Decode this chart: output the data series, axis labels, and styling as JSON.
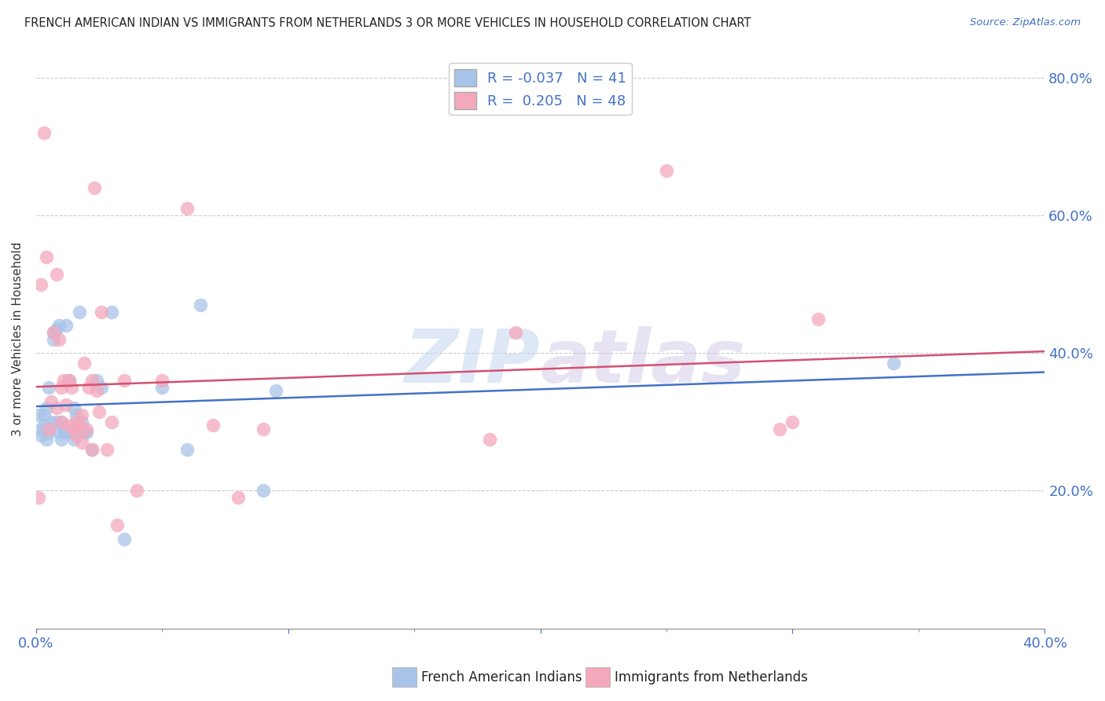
{
  "title": "FRENCH AMERICAN INDIAN VS IMMIGRANTS FROM NETHERLANDS 3 OR MORE VEHICLES IN HOUSEHOLD CORRELATION CHART",
  "source": "Source: ZipAtlas.com",
  "ylabel": "3 or more Vehicles in Household",
  "legend_label1": "French American Indians",
  "legend_label2": "Immigrants from Netherlands",
  "R1": -0.037,
  "N1": 41,
  "R2": 0.205,
  "N2": 48,
  "color1": "#a8c4e8",
  "color2": "#f4a8bc",
  "line_color1": "#4472c4",
  "line_color2": "#d45070",
  "background_color": "#ffffff",
  "grid_color": "#cccccc",
  "text_color": "#4472c4",
  "title_color": "#222222",
  "xlim": [
    0.0,
    0.4
  ],
  "ylim": [
    0.0,
    0.84
  ],
  "x_ticks": [
    0.0,
    0.1,
    0.2,
    0.3,
    0.4
  ],
  "y_ticks": [
    0.2,
    0.4,
    0.6,
    0.8
  ],
  "scatter1_x": [
    0.001,
    0.002,
    0.002,
    0.003,
    0.003,
    0.004,
    0.004,
    0.005,
    0.005,
    0.006,
    0.007,
    0.007,
    0.008,
    0.008,
    0.009,
    0.009,
    0.01,
    0.01,
    0.011,
    0.012,
    0.012,
    0.013,
    0.014,
    0.015,
    0.015,
    0.016,
    0.017,
    0.018,
    0.019,
    0.02,
    0.022,
    0.024,
    0.026,
    0.03,
    0.035,
    0.05,
    0.06,
    0.065,
    0.09,
    0.095,
    0.34
  ],
  "scatter1_y": [
    0.31,
    0.29,
    0.28,
    0.31,
    0.295,
    0.32,
    0.275,
    0.35,
    0.285,
    0.3,
    0.43,
    0.42,
    0.435,
    0.3,
    0.44,
    0.285,
    0.3,
    0.275,
    0.29,
    0.44,
    0.285,
    0.36,
    0.285,
    0.32,
    0.275,
    0.31,
    0.46,
    0.3,
    0.285,
    0.285,
    0.26,
    0.36,
    0.35,
    0.46,
    0.13,
    0.35,
    0.26,
    0.47,
    0.2,
    0.345,
    0.385
  ],
  "scatter2_x": [
    0.001,
    0.002,
    0.003,
    0.004,
    0.005,
    0.006,
    0.007,
    0.008,
    0.008,
    0.009,
    0.01,
    0.01,
    0.011,
    0.012,
    0.013,
    0.013,
    0.014,
    0.015,
    0.016,
    0.016,
    0.017,
    0.018,
    0.018,
    0.019,
    0.02,
    0.021,
    0.022,
    0.022,
    0.023,
    0.024,
    0.025,
    0.026,
    0.028,
    0.03,
    0.032,
    0.035,
    0.04,
    0.05,
    0.06,
    0.07,
    0.08,
    0.09,
    0.18,
    0.19,
    0.25,
    0.295,
    0.3,
    0.31
  ],
  "scatter2_y": [
    0.19,
    0.5,
    0.72,
    0.54,
    0.29,
    0.33,
    0.43,
    0.515,
    0.32,
    0.42,
    0.35,
    0.3,
    0.36,
    0.325,
    0.295,
    0.36,
    0.35,
    0.29,
    0.3,
    0.28,
    0.295,
    0.31,
    0.27,
    0.385,
    0.29,
    0.35,
    0.36,
    0.26,
    0.64,
    0.345,
    0.315,
    0.46,
    0.26,
    0.3,
    0.15,
    0.36,
    0.2,
    0.36,
    0.61,
    0.295,
    0.19,
    0.29,
    0.275,
    0.43,
    0.665,
    0.29,
    0.3,
    0.45
  ],
  "watermark_zip": "ZIP",
  "watermark_atlas": "atlas",
  "figsize": [
    14.06,
    8.92
  ],
  "dpi": 100
}
